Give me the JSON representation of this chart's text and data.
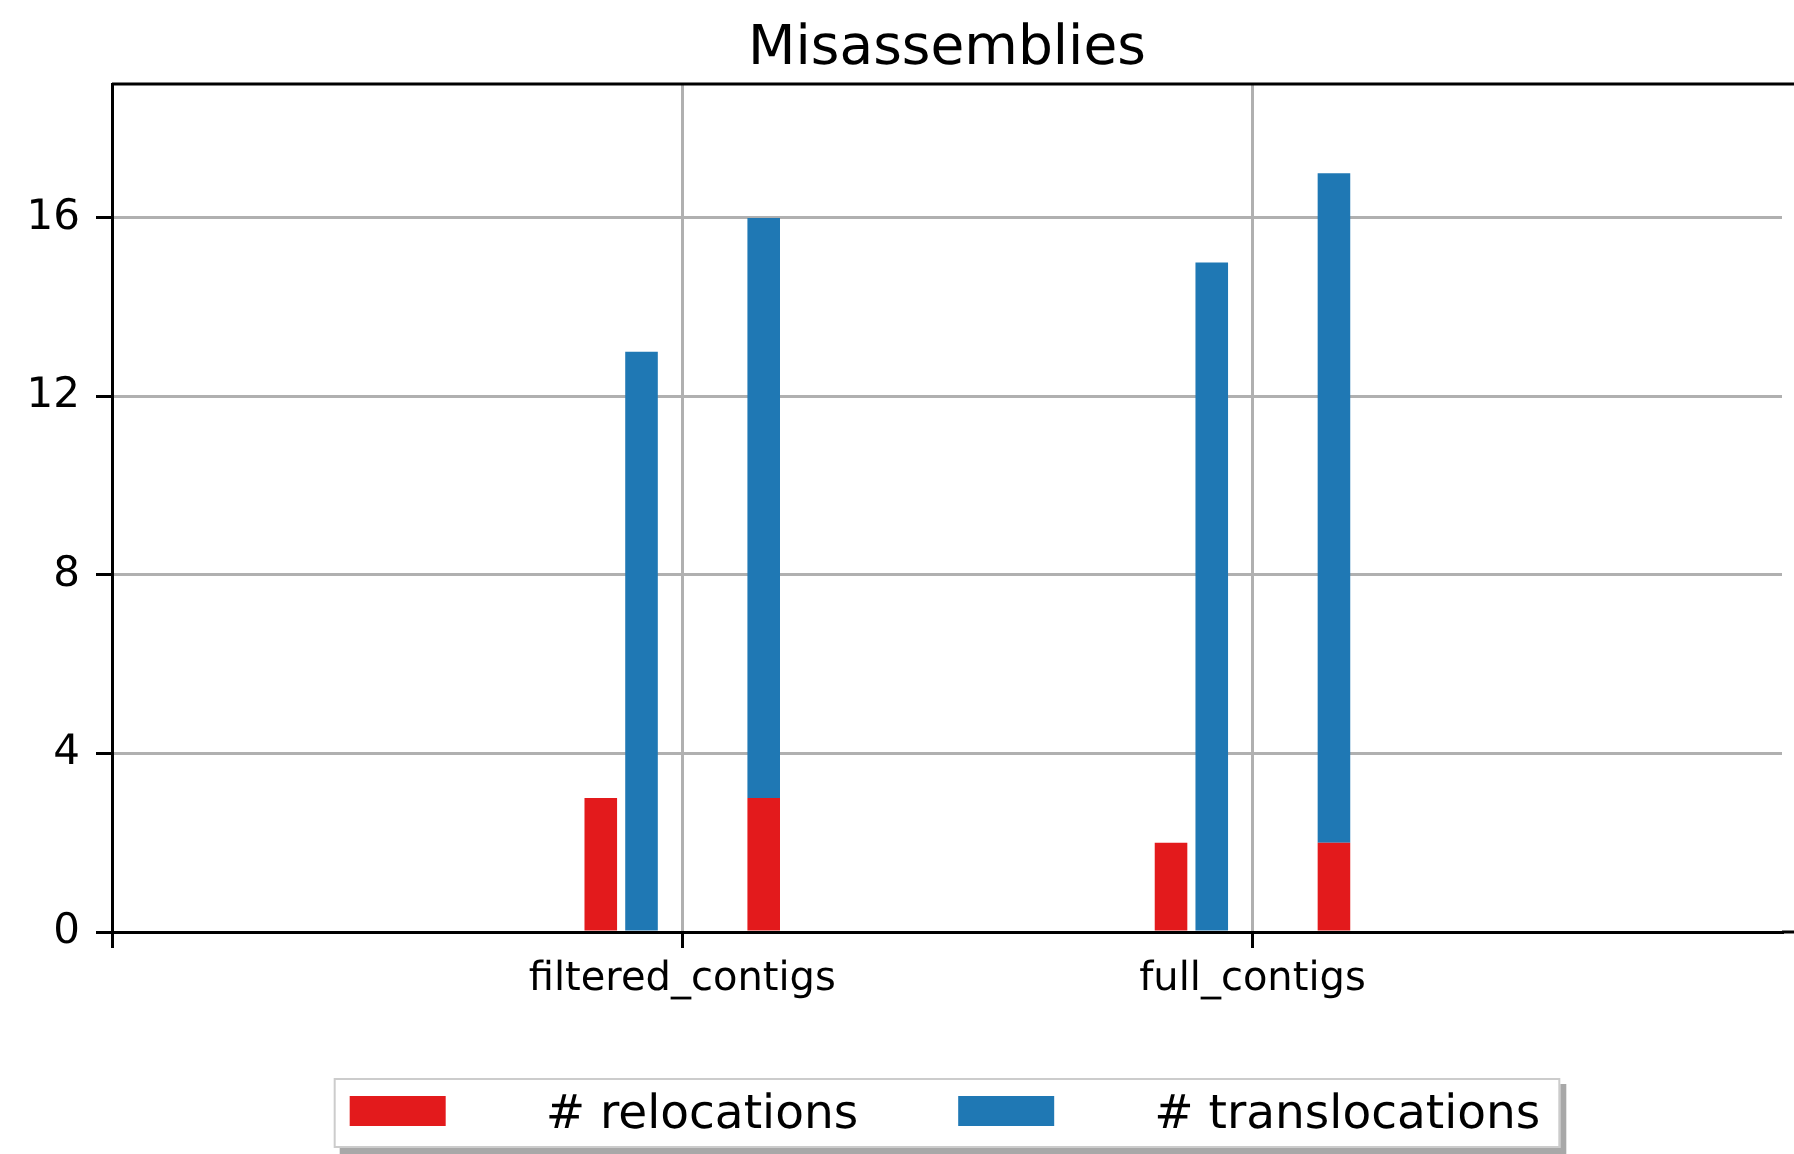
{
  "chart_data": {
    "type": "bar",
    "title": "Misassemblies",
    "categories": [
      null,
      null,
      null,
      null,
      null,
      null,
      null,
      null,
      null,
      null,
      null,
      null,
      null,
      null,
      "filtered_contigs",
      null,
      null,
      null,
      null,
      null,
      null,
      null,
      null,
      null,
      null,
      null,
      null,
      null,
      "full_contigs",
      null,
      null,
      null,
      null,
      null,
      null,
      null,
      null,
      null,
      null,
      null,
      null,
      null
    ],
    "ylim": [
      0,
      19
    ],
    "yticks": [
      0,
      4,
      8,
      12,
      16
    ],
    "grid": true,
    "legend": "bottom",
    "stacked": true,
    "series": [
      {
        "name": "# relocations",
        "color": "#e31a1c",
        "values": [
          null,
          null,
          null,
          null,
          null,
          null,
          null,
          null,
          null,
          null,
          null,
          null,
          3,
          null,
          null,
          null,
          3,
          null,
          null,
          null,
          null,
          null,
          null,
          null,
          null,
          null,
          2,
          null,
          null,
          null,
          2,
          null,
          null,
          null,
          null,
          null,
          null,
          null,
          null,
          null,
          null,
          null
        ]
      },
      {
        "name": "# translocations",
        "color": "#1f78b4",
        "values": [
          null,
          null,
          null,
          null,
          null,
          null,
          null,
          null,
          null,
          null,
          null,
          null,
          null,
          13,
          null,
          null,
          13,
          null,
          null,
          null,
          null,
          null,
          null,
          null,
          null,
          null,
          null,
          15,
          null,
          null,
          15,
          null,
          null,
          null,
          null,
          null,
          null,
          null,
          null,
          null,
          null,
          null
        ]
      }
    ]
  }
}
